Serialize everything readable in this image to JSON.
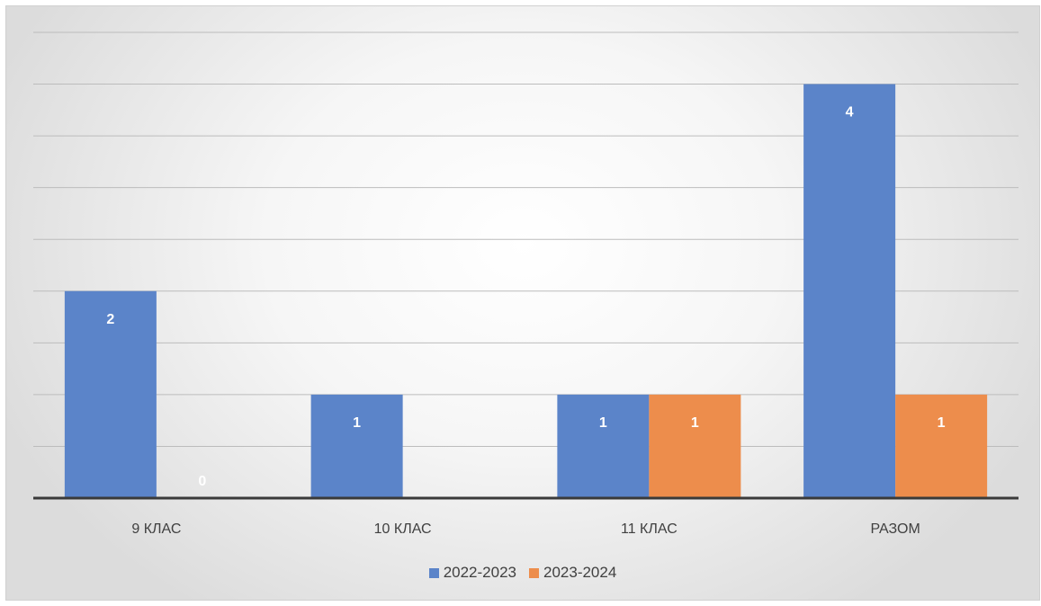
{
  "chart_data": {
    "type": "bar",
    "categories": [
      "9 КЛАС",
      "10 КЛАС",
      "11 КЛАС",
      "РАЗОМ"
    ],
    "series": [
      {
        "name": "2022-2023",
        "values": [
          2,
          1,
          1,
          4
        ],
        "color": "#5b84c9",
        "labels": [
          "2",
          "1",
          "1",
          "4"
        ]
      },
      {
        "name": "2023-2024",
        "values": [
          0,
          null,
          1,
          1
        ],
        "color": "#ed8d4c",
        "labels": [
          "0",
          "",
          "1",
          "1"
        ]
      }
    ],
    "title": "",
    "xlabel": "",
    "ylabel": "",
    "ylim": [
      0,
      4.5
    ],
    "grid_step": 0.5,
    "grid": true,
    "legend_position": "bottom"
  }
}
